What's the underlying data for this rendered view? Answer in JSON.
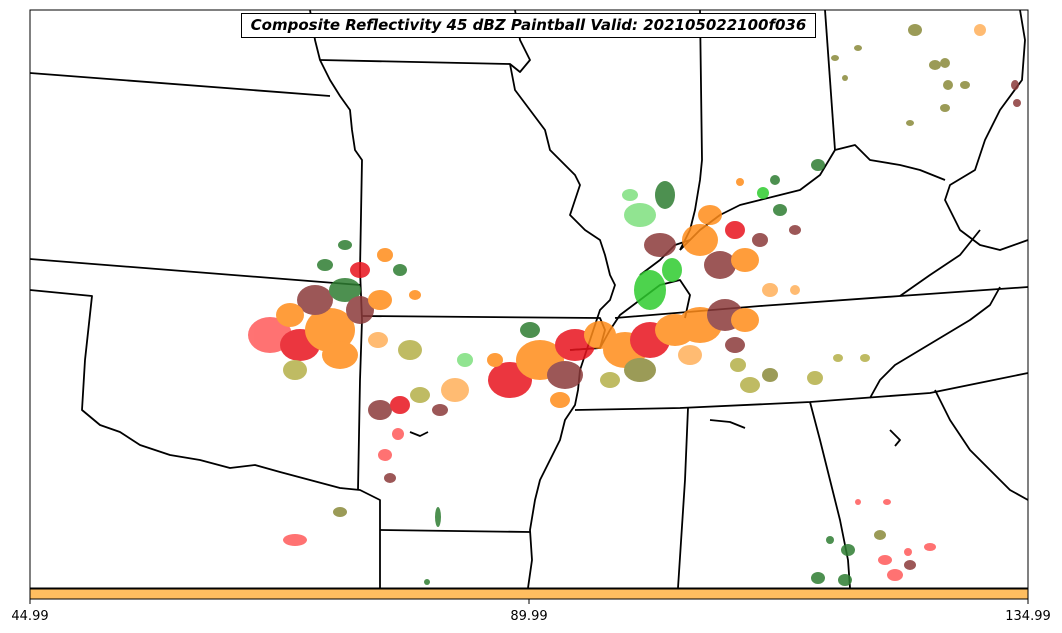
{
  "title": "Composite Reflectivity 45 dBZ Paintball Valid: 202105022100f036",
  "colorbar": {
    "color": "#ffbe60",
    "ticks": [
      "44.99",
      "89.99",
      "134.99"
    ]
  },
  "legend_colors": {
    "dark_green": "#2e7d32",
    "light_green": "#2ecc2e",
    "bright_green": "#7ee07e",
    "olive": "#8a8a3a",
    "khaki": "#b5b048",
    "brown": "#8b3a3a",
    "red": "#e8141e",
    "light_red": "#ff5a5a",
    "orange": "#ff8c1a",
    "light_orange": "#ffb05a"
  }
}
